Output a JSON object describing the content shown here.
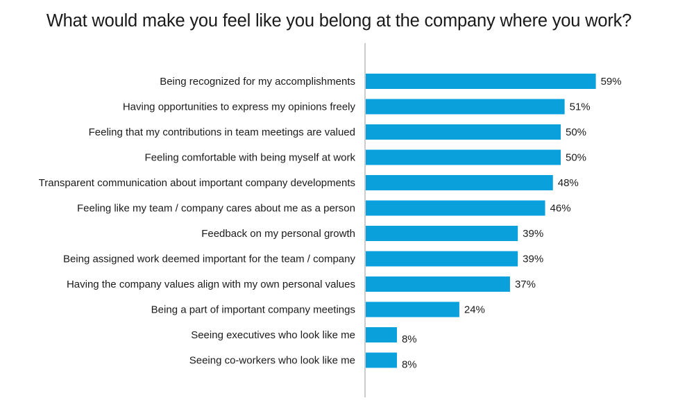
{
  "chart_data": {
    "type": "bar",
    "orientation": "horizontal",
    "title": "What would make you feel like you belong at the company where you work?",
    "categories": [
      "Being recognized for my accomplishments",
      "Having opportunities to express my opinions freely",
      "Feeling that my contributions in team meetings are valued",
      "Feeling comfortable with being myself at work",
      "Transparent communication about important company developments",
      "Feeling like my team / company cares about me as a person",
      "Feedback on my personal growth",
      "Being assigned work deemed important for the team / company",
      "Having the company values align with my own personal values",
      "Being a part of important company meetings",
      "Seeing executives who look like me",
      "Seeing co-workers who look like me"
    ],
    "values": [
      59,
      51,
      50,
      50,
      48,
      46,
      39,
      39,
      37,
      24,
      8,
      8
    ],
    "value_labels": [
      "59%",
      "51%",
      "50%",
      "50%",
      "48%",
      "46%",
      "39%",
      "39%",
      "37%",
      "24%",
      "8%",
      "8%"
    ],
    "unit": "%",
    "xlim": [
      0,
      60
    ],
    "grid": false,
    "legend": "none",
    "bar_color": "#0aa0dc",
    "axis_color": "#9a9a9a"
  }
}
